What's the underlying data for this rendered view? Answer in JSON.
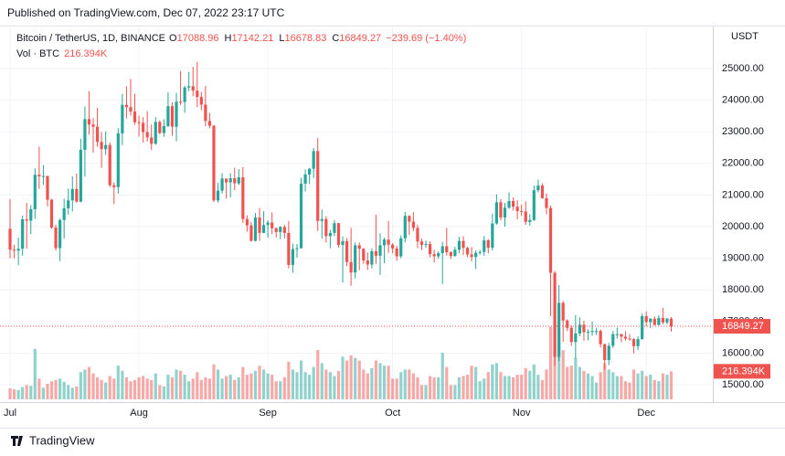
{
  "chart_data": {
    "type": "candlestick",
    "published": "Published on TradingView.com, Dec 07, 2022 23:17 UTC",
    "symbol": "Bitcoin / TetherUS, 1D, BINANCE",
    "ohlc_labels": [
      "O",
      "H",
      "L",
      "C"
    ],
    "change": "−239.69 (−1.40%)",
    "volume_title": "Vol · BTC",
    "volume_value_label": "216.394K",
    "axis_unit": "USDT",
    "brand": "TradingView",
    "up_color": "#26a69a",
    "down_color": "#ef5350",
    "grid": true,
    "xlim": [
      -2.42,
      169.0
    ],
    "xticks": [
      {
        "value": 0,
        "label": "Jul"
      },
      {
        "value": 31,
        "label": "Aug"
      },
      {
        "value": 62,
        "label": "Sep"
      },
      {
        "value": 92,
        "label": "Oct"
      },
      {
        "value": 123,
        "label": "Nov"
      },
      {
        "value": 153,
        "label": "Dec"
      }
    ],
    "ylim": [
      14538,
      26300
    ],
    "yticks": [
      {
        "value": 15000,
        "label": "15000.00"
      },
      {
        "value": 16000,
        "label": "16000.00"
      },
      {
        "value": 17000,
        "label": "17000.00"
      },
      {
        "value": 18000,
        "label": "18000.00"
      },
      {
        "value": 19000,
        "label": "19000.00"
      },
      {
        "value": 20000,
        "label": "20000.00"
      },
      {
        "value": 21000,
        "label": "21000.00"
      },
      {
        "value": 22000,
        "label": "22000.00"
      },
      {
        "value": 23000,
        "label": "23000.00"
      },
      {
        "value": 24000,
        "label": "24000.00"
      },
      {
        "value": 25000,
        "label": "25000.00"
      }
    ],
    "open": [
      19930,
      19270,
      19240,
      19300,
      20230,
      20190,
      20550,
      21640,
      21590,
      21600,
      20850,
      19970,
      19320,
      20210,
      20580,
      20830,
      21190,
      20790,
      22430,
      23400,
      23230,
      23160,
      22680,
      22450,
      22580,
      21310,
      21250,
      22950,
      23850,
      23780,
      23640,
      23300,
      23280,
      22990,
      22820,
      22620,
      23310,
      22960,
      23180,
      23810,
      23160,
      23950,
      23940,
      24400,
      24440,
      24300,
      24100,
      23860,
      23340,
      23190,
      20830,
      21140,
      21520,
      21400,
      21530,
      21370,
      21560,
      20240,
      20040,
      19550,
      20290,
      19800,
      20050,
      20130,
      19950,
      19830,
      19990,
      19800,
      18790,
      19290,
      19320,
      21360,
      21650,
      21830,
      22390,
      20180,
      20240,
      19700,
      19800,
      20110,
      19420,
      19540,
      18880,
      18550,
      19410,
      19300,
      18930,
      18800,
      19220,
      19080,
      19410,
      19590,
      19430,
      19310,
      19060,
      19630,
      20340,
      20160,
      19960,
      19530,
      19420,
      19450,
      19130,
      19060,
      19160,
      19380,
      19190,
      19070,
      19270,
      19550,
      19330,
      19120,
      19040,
      19170,
      19200,
      19570,
      19330,
      20100,
      20770,
      20290,
      20600,
      20810,
      20630,
      20490,
      20480,
      20150,
      20210,
      21150,
      21300,
      20900,
      20590,
      18540,
      15880,
      17590,
      17030,
      16800,
      16350,
      16620,
      16900,
      16660,
      16680,
      16700,
      16700,
      16280,
      15780,
      16230,
      16600,
      16600,
      16520,
      16460,
      16440,
      16220,
      16440,
      17170,
      16980,
      17090,
      16890,
      17110,
      16970,
      17088.96
    ],
    "high": [
      20870,
      19430,
      19650,
      20350,
      20750,
      20680,
      21840,
      22530,
      21950,
      21610,
      20880,
      20060,
      20250,
      20880,
      21200,
      21590,
      21680,
      22780,
      23800,
      24280,
      23430,
      23760,
      22990,
      23010,
      22660,
      21400,
      23110,
      24200,
      24440,
      24670,
      24200,
      23510,
      23460,
      23650,
      23230,
      23460,
      23360,
      23400,
      24250,
      23930,
      24230,
      24920,
      24460,
      24890,
      25050,
      25210,
      24250,
      24450,
      23600,
      23210,
      21380,
      21690,
      21520,
      21690,
      21860,
      21820,
      21880,
      20360,
      20150,
      20430,
      20590,
      20490,
      20200,
      20450,
      19970,
      20020,
      20060,
      20180,
      19460,
      19450,
      21550,
      21810,
      21860,
      22490,
      22800,
      20540,
      20330,
      19890,
      20200,
      20110,
      19690,
      19640,
      19960,
      19500,
      19500,
      19320,
      19180,
      19320,
      20380,
      19790,
      19650,
      20180,
      19480,
      19400,
      19720,
      20470,
      20360,
      20460,
      20060,
      19620,
      19560,
      19540,
      19270,
      19220,
      19520,
      19960,
      19220,
      19360,
      19680,
      19700,
      19360,
      19350,
      19250,
      19260,
      19700,
      19610,
      20410,
      21020,
      20870,
      20750,
      21080,
      20930,
      20840,
      20700,
      20800,
      20400,
      21300,
      21480,
      21370,
      21050,
      20670,
      18600,
      18150,
      17650,
      17070,
      16880,
      17200,
      17130,
      17020,
      16750,
      17000,
      16800,
      16750,
      16300,
      16320,
      16700,
      16810,
      16610,
      16690,
      16600,
      16480,
      16530,
      17250,
      17320,
      17110,
      17160,
      17200,
      17430,
      17110,
      17142.21
    ],
    "low": [
      19000,
      19000,
      18780,
      19080,
      19300,
      19760,
      20240,
      21190,
      21320,
      20640,
      19930,
      19240,
      18910,
      19620,
      20380,
      20480,
      20760,
      20770,
      21580,
      22910,
      22340,
      22530,
      21860,
      22270,
      21250,
      20710,
      21040,
      22580,
      23420,
      23510,
      23220,
      22850,
      22660,
      22690,
      22430,
      22590,
      22920,
      22840,
      23150,
      22870,
      22700,
      23850,
      23600,
      24290,
      24130,
      23780,
      23680,
      23180,
      23110,
      20780,
      20760,
      21050,
      20890,
      20930,
      21150,
      21310,
      20120,
      19840,
      19530,
      19530,
      19550,
      19800,
      19650,
      19760,
      19660,
      19600,
      19630,
      18680,
      18540,
      19020,
      19300,
      21110,
      21350,
      21540,
      19860,
      19620,
      19500,
      19320,
      19700,
      19340,
      18230,
      18750,
      18130,
      18360,
      18620,
      18820,
      18630,
      18680,
      18820,
      18470,
      18840,
      19170,
      19160,
      18920,
      19000,
      19500,
      19740,
      19860,
      19320,
      19260,
      19330,
      19030,
      18860,
      18990,
      18190,
      19080,
      18980,
      19050,
      19160,
      19100,
      19030,
      18900,
      18660,
      19110,
      19070,
      19160,
      19240,
      20060,
      20200,
      20000,
      20560,
      20510,
      20230,
      20340,
      20060,
      20030,
      20180,
      21080,
      20880,
      20390,
      17170,
      15590,
      15750,
      16360,
      16700,
      16230,
      15820,
      16530,
      16390,
      16400,
      16550,
      16570,
      16180,
      15480,
      15620,
      16170,
      16460,
      16350,
      16400,
      16400,
      15990,
      16100,
      16430,
      16850,
      16790,
      16870,
      16880,
      16910,
      16910,
      16678.83
    ],
    "close": [
      19270,
      19240,
      19300,
      20230,
      20190,
      20550,
      21640,
      21590,
      21600,
      20850,
      19970,
      19320,
      20210,
      20580,
      20830,
      21190,
      20790,
      22430,
      23400,
      23230,
      23160,
      22680,
      22450,
      22580,
      21310,
      21250,
      22950,
      23850,
      23780,
      23640,
      23300,
      23280,
      22990,
      22820,
      22620,
      23310,
      22960,
      23180,
      23810,
      23160,
      23950,
      23940,
      24400,
      24440,
      24300,
      24100,
      23860,
      23340,
      23190,
      20830,
      21140,
      21520,
      21400,
      21530,
      21370,
      21560,
      20240,
      20040,
      19550,
      20290,
      19800,
      20050,
      20130,
      19950,
      19830,
      19990,
      19800,
      18790,
      19290,
      19320,
      21360,
      21650,
      21830,
      22390,
      20180,
      20240,
      19700,
      19800,
      20110,
      19420,
      19540,
      18880,
      18550,
      19410,
      19300,
      18930,
      18800,
      19220,
      19080,
      19410,
      19590,
      19430,
      19310,
      19060,
      19630,
      20340,
      20160,
      19960,
      19530,
      19420,
      19450,
      19130,
      19060,
      19160,
      19380,
      19190,
      19070,
      19270,
      19550,
      19330,
      19120,
      19040,
      19170,
      19200,
      19570,
      19330,
      20100,
      20770,
      20290,
      20600,
      20810,
      20630,
      20490,
      20480,
      20150,
      20210,
      21150,
      21300,
      20900,
      20590,
      18540,
      15880,
      17590,
      17030,
      16800,
      16350,
      16620,
      16900,
      16660,
      16680,
      16700,
      16700,
      16280,
      15780,
      16230,
      16600,
      16600,
      16520,
      16460,
      16440,
      16220,
      16440,
      17170,
      16980,
      17090,
      16890,
      17110,
      16970,
      17088.96,
      16849.27
    ],
    "volume": [
      85000,
      78000,
      72000,
      95000,
      110000,
      105000,
      390000,
      160000,
      90000,
      120000,
      140000,
      150000,
      160000,
      135000,
      110000,
      90000,
      100000,
      210000,
      230000,
      250000,
      200000,
      170000,
      150000,
      130000,
      180000,
      160000,
      260000,
      220000,
      170000,
      140000,
      150000,
      170000,
      180000,
      160000,
      150000,
      200000,
      110000,
      100000,
      190000,
      170000,
      230000,
      220000,
      190000,
      140000,
      160000,
      210000,
      150000,
      170000,
      160000,
      270000,
      230000,
      160000,
      180000,
      190000,
      150000,
      170000,
      250000,
      190000,
      200000,
      220000,
      260000,
      230000,
      200000,
      190000,
      140000,
      140000,
      170000,
      290000,
      230000,
      210000,
      300000,
      210000,
      190000,
      250000,
      380000,
      280000,
      230000,
      210000,
      180000,
      220000,
      330000,
      300000,
      340000,
      320000,
      300000,
      230000,
      200000,
      240000,
      300000,
      280000,
      260000,
      260000,
      160000,
      160000,
      210000,
      230000,
      230000,
      200000,
      170000,
      110000,
      110000,
      180000,
      170000,
      170000,
      360000,
      250000,
      110000,
      110000,
      170000,
      180000,
      190000,
      260000,
      250000,
      140000,
      160000,
      210000,
      270000,
      280000,
      210000,
      180000,
      180000,
      170000,
      190000,
      190000,
      240000,
      220000,
      270000,
      190000,
      150000,
      230000,
      560000,
      600000,
      520000,
      380000,
      250000,
      260000,
      320000,
      250000,
      220000,
      200000,
      180000,
      130000,
      210000,
      280000,
      230000,
      210000,
      180000,
      180000,
      140000,
      130000,
      230000,
      200000,
      220000,
      180000,
      190000,
      150000,
      140000,
      200000,
      190000,
      216394
    ]
  }
}
